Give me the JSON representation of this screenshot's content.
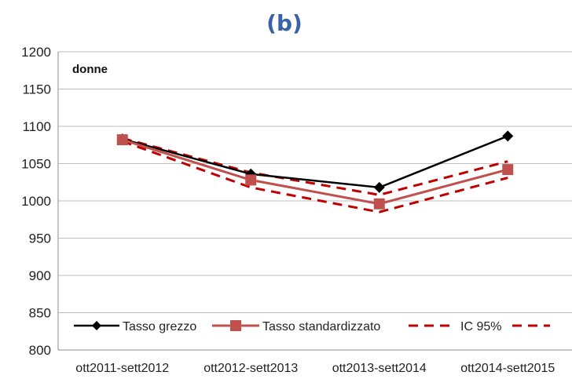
{
  "chart_data": {
    "type": "line",
    "title": "(b)",
    "panel_label": "donne",
    "categories": [
      "ott2011-sett2012",
      "ott2012-sett2013",
      "ott2013-sett2014",
      "ott2014-sett2015"
    ],
    "ylim": [
      800,
      1200
    ],
    "yticks": [
      "800",
      "850",
      "900",
      "950",
      "1000",
      "1050",
      "1100",
      "1150",
      "1200"
    ],
    "grid": true,
    "legend_position": "bottom",
    "series": [
      {
        "name": "Tasso grezzo",
        "values": [
          1083,
          1036,
          1018,
          1087
        ],
        "color": "#000000",
        "marker": "diamond",
        "style": "solid"
      },
      {
        "name": "Tasso standardizzato",
        "values": [
          1082,
          1028,
          996,
          1042
        ],
        "color": "#c0504d",
        "marker": "square",
        "style": "solid"
      },
      {
        "name": "IC 95%",
        "values_upper": [
          1084,
          1038,
          1008,
          1053
        ],
        "values_lower": [
          1080,
          1018,
          985,
          1031
        ],
        "color": "#c00000",
        "marker": "none",
        "style": "dashed"
      }
    ]
  }
}
